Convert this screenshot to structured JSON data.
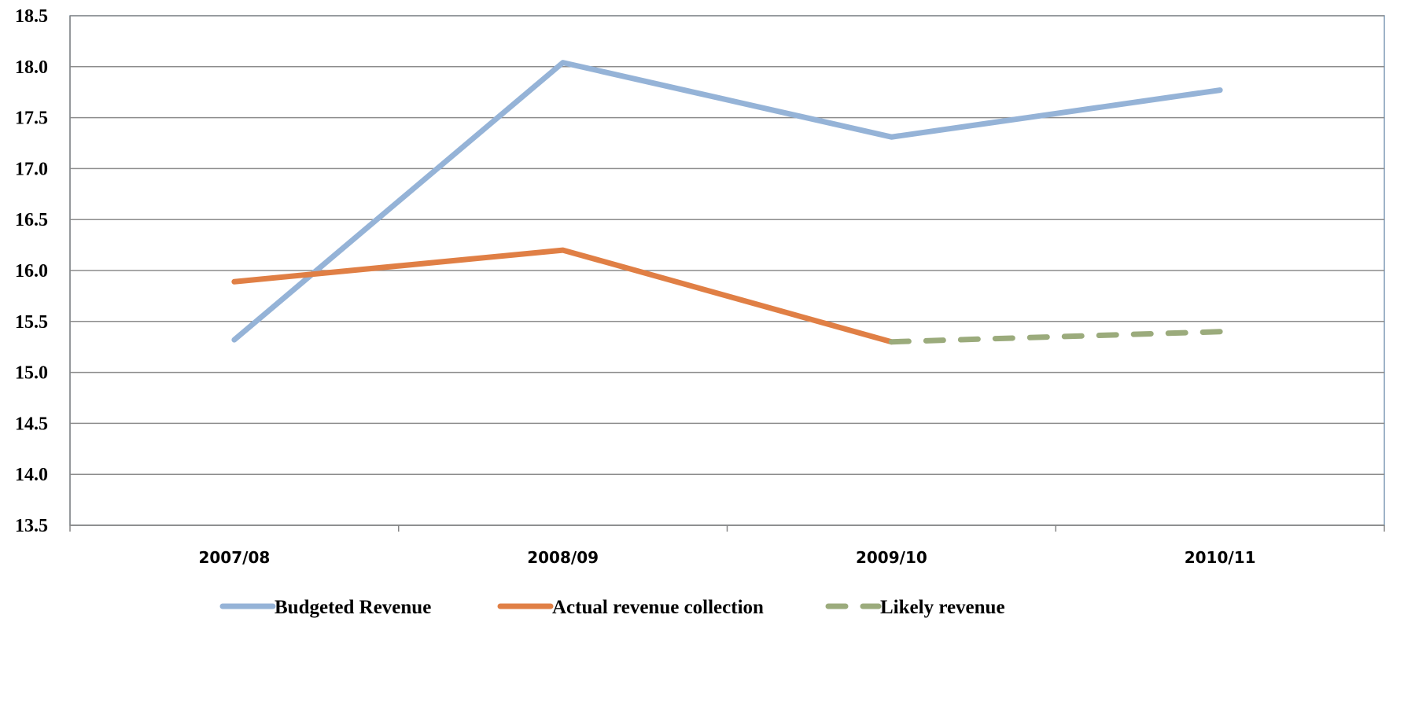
{
  "chart_data": {
    "type": "line",
    "title": "",
    "xlabel": "",
    "ylabel": "",
    "categories": [
      "2007/08",
      "2008/09",
      "2009/10",
      "2010/11"
    ],
    "ylim": [
      13.5,
      18.5
    ],
    "yticks": [
      "13.5",
      "14.0",
      "14.5",
      "15.0",
      "15.5",
      "16.0",
      "16.5",
      "17.0",
      "17.5",
      "18.0",
      "18.5"
    ],
    "grid": true,
    "legend_position": "bottom",
    "series": [
      {
        "name": "Budgeted Revenue",
        "values": [
          15.32,
          18.04,
          17.31,
          17.77
        ],
        "color": "#95b3d7",
        "style": "solid"
      },
      {
        "name": "Actual revenue collection",
        "values": [
          15.89,
          16.2,
          15.3,
          null
        ],
        "color": "#e07f45",
        "style": "solid"
      },
      {
        "name": "Likely revenue",
        "values": [
          null,
          null,
          15.3,
          15.4
        ],
        "color": "#9bab7c",
        "style": "dashed"
      }
    ]
  }
}
